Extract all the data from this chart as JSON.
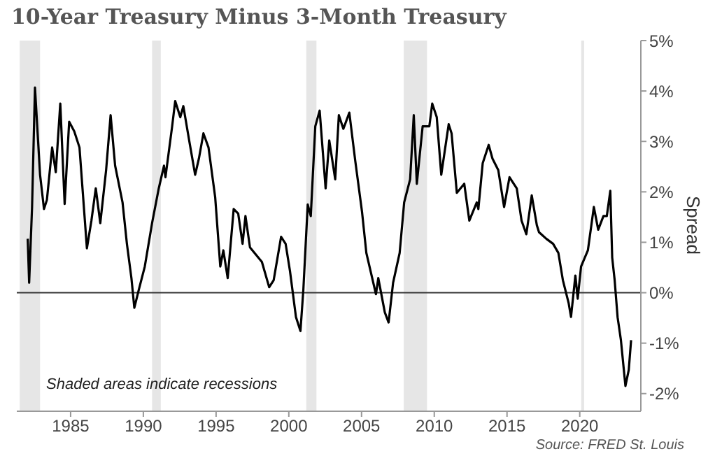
{
  "chart_data": {
    "type": "line",
    "title": "10-Year Treasury Minus 3-Month Treasury",
    "ylabel": "Spread",
    "annotations": [
      "Shaded areas indicate recessions",
      "Source: FRED St. Louis"
    ],
    "series": [
      {
        "color": "#000000",
        "x": [
          1982.05,
          1982.15,
          1982.35,
          1982.55,
          1982.9,
          1983.17,
          1983.37,
          1983.73,
          1983.98,
          1984.29,
          1984.59,
          1984.9,
          1985.25,
          1985.61,
          1986.12,
          1986.43,
          1986.73,
          1987.04,
          1987.44,
          1987.75,
          1988.06,
          1988.57,
          1988.87,
          1989.18,
          1989.38,
          1989.69,
          1990.1,
          1990.6,
          1991.06,
          1991.42,
          1991.52,
          1991.98,
          1992.19,
          1992.54,
          1992.75,
          1993.15,
          1993.56,
          1993.82,
          1994.13,
          1994.48,
          1994.94,
          1995.29,
          1995.5,
          1995.8,
          1996.21,
          1996.52,
          1996.82,
          1997.02,
          1997.33,
          1998.15,
          1998.65,
          1998.96,
          1999.47,
          1999.78,
          2000.08,
          2000.49,
          2000.8,
          2001.0,
          2001.3,
          2001.51,
          2001.82,
          2002.12,
          2002.53,
          2002.78,
          2003.19,
          2003.44,
          2003.75,
          2004.16,
          2004.57,
          2005.03,
          2005.33,
          2005.99,
          2006.15,
          2006.6,
          2006.86,
          2007.17,
          2007.62,
          2007.93,
          2008.34,
          2008.59,
          2008.8,
          2009.2,
          2009.66,
          2009.86,
          2010.17,
          2010.48,
          2010.99,
          2011.19,
          2011.55,
          2012.06,
          2012.41,
          2012.92,
          2013.03,
          2013.33,
          2013.74,
          2014.0,
          2014.4,
          2014.8,
          2015.17,
          2015.67,
          2016.0,
          2016.33,
          2016.7,
          2017.05,
          2017.2,
          2017.7,
          2018.17,
          2018.53,
          2018.84,
          2019.24,
          2019.4,
          2019.7,
          2019.86,
          2020.09,
          2020.56,
          2020.97,
          2021.27,
          2021.63,
          2021.86,
          2022.1,
          2022.23,
          2022.4,
          2022.6,
          2022.83,
          2023.14,
          2023.37,
          2023.53
        ],
        "values": [
          1.07,
          0.2,
          1.7,
          4.07,
          2.34,
          1.66,
          1.84,
          2.88,
          2.39,
          3.75,
          1.76,
          3.39,
          3.2,
          2.88,
          0.88,
          1.43,
          2.07,
          1.38,
          2.43,
          3.52,
          2.52,
          1.79,
          0.97,
          0.29,
          -0.3,
          0.06,
          0.52,
          1.38,
          2.07,
          2.52,
          2.29,
          3.3,
          3.8,
          3.48,
          3.7,
          3.02,
          2.34,
          2.66,
          3.16,
          2.88,
          1.89,
          0.52,
          0.84,
          0.29,
          1.66,
          1.57,
          0.97,
          1.52,
          0.9,
          0.61,
          0.11,
          0.25,
          1.11,
          0.97,
          0.43,
          -0.48,
          -0.76,
          0.06,
          1.75,
          1.52,
          3.3,
          3.61,
          2.07,
          3.02,
          2.25,
          3.52,
          3.25,
          3.57,
          2.61,
          1.61,
          0.79,
          -0.03,
          0.29,
          -0.39,
          -0.59,
          0.2,
          0.79,
          1.79,
          2.25,
          3.52,
          2.16,
          3.3,
          3.3,
          3.75,
          3.48,
          2.34,
          3.34,
          3.16,
          1.98,
          2.16,
          1.43,
          1.79,
          1.66,
          2.57,
          2.93,
          2.66,
          2.43,
          1.7,
          2.29,
          2.07,
          1.43,
          1.16,
          1.93,
          1.34,
          1.2,
          1.07,
          0.97,
          0.79,
          0.25,
          -0.21,
          -0.48,
          0.34,
          -0.12,
          0.52,
          0.84,
          1.7,
          1.25,
          1.52,
          1.52,
          2.02,
          0.7,
          0.25,
          -0.48,
          -0.94,
          -1.85,
          -1.53,
          -0.94
        ]
      }
    ],
    "xlim": [
      1981.3,
      2024.2
    ],
    "xticks": [
      1985,
      1990,
      1995,
      2000,
      2005,
      2010,
      2015,
      2020
    ],
    "ylim": [
      -2.35,
      5.0
    ],
    "yticks": [
      {
        "value": 5,
        "label": "5%"
      },
      {
        "value": 4,
        "label": "4%"
      },
      {
        "value": 3,
        "label": "3%"
      },
      {
        "value": 2,
        "label": "2%"
      },
      {
        "value": 1,
        "label": "1%"
      },
      {
        "value": 0,
        "label": "0%"
      },
      {
        "value": -1,
        "label": "-1%"
      },
      {
        "value": -2,
        "label": "-2%"
      }
    ],
    "ref_lines": [
      {
        "axis": "y",
        "value": 0,
        "color": "#333333"
      }
    ],
    "bands": [
      {
        "axis": "x",
        "from": 1981.5,
        "to": 1982.9,
        "color": "#e6e6e6"
      },
      {
        "axis": "x",
        "from": 1990.6,
        "to": 1991.2,
        "color": "#e6e6e6"
      },
      {
        "axis": "x",
        "from": 2001.2,
        "to": 2001.9,
        "color": "#e6e6e6"
      },
      {
        "axis": "x",
        "from": 2007.9,
        "to": 2009.5,
        "color": "#e6e6e6"
      },
      {
        "axis": "x",
        "from": 2020.1,
        "to": 2020.3,
        "color": "#e6e6e6"
      }
    ],
    "grid": false,
    "legend": false,
    "marker": "none",
    "line_style": "solid"
  }
}
